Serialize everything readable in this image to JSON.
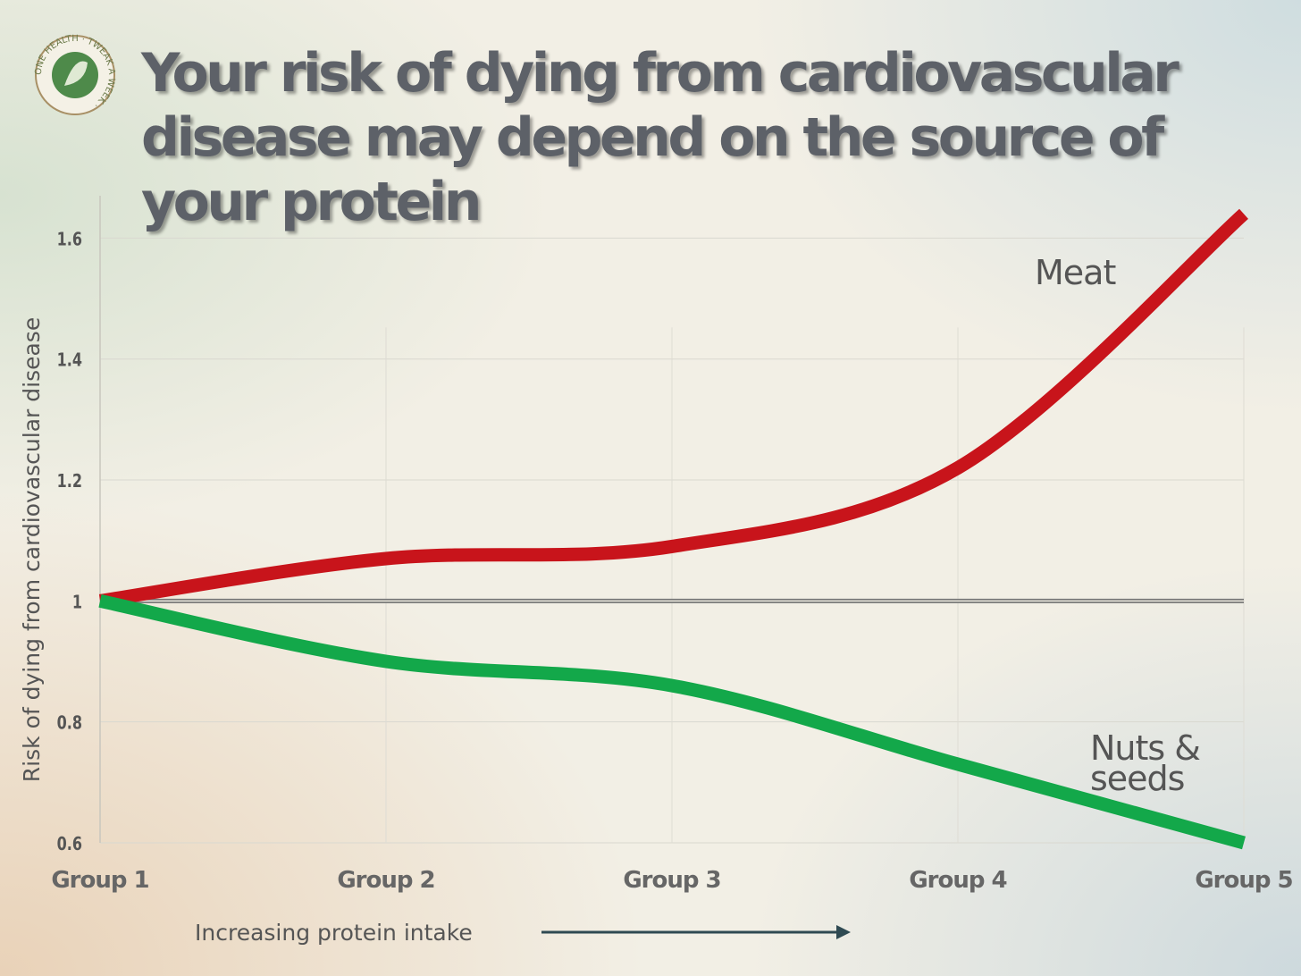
{
  "logo_text": "ONE HEALTH · TWEAK A WEEK ·",
  "chart_data": {
    "type": "line",
    "title": "Your risk of dying from cardiovascular disease may depend on the source of your protein",
    "y_label": "Risk of dying from cardiovascular disease",
    "x_label": "Increasing protein intake",
    "categories": [
      "Group 1",
      "Group 2",
      "Group 3",
      "Group 4",
      "Group 5"
    ],
    "series": [
      {
        "name": "Meat",
        "color": "#c8141b",
        "values": [
          1.0,
          1.07,
          1.09,
          1.22,
          1.64
        ]
      },
      {
        "name": "Nuts & seeds",
        "color": "#13a84a",
        "values": [
          1.0,
          0.9,
          0.86,
          0.73,
          0.6
        ]
      }
    ],
    "ylim": [
      0.6,
      1.67
    ],
    "yticks": [
      0.6,
      0.8,
      1,
      1.2,
      1.4,
      1.6
    ],
    "reference_line": 1,
    "grid": true,
    "smooth": true
  }
}
